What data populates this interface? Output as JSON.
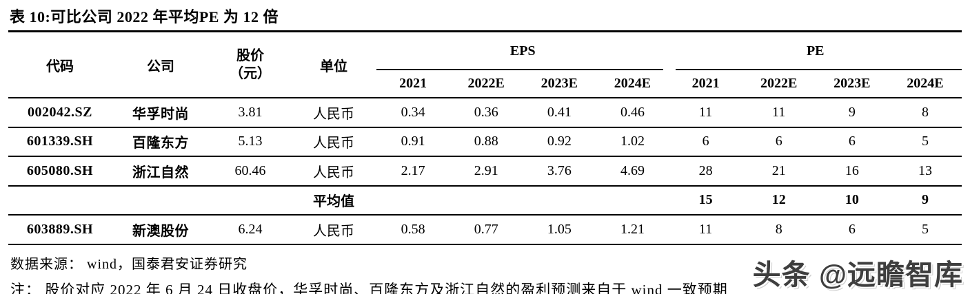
{
  "title": "表 10:可比公司 2022 年平均PE 为 12 倍",
  "table": {
    "columns": {
      "code": "代码",
      "company": "公司",
      "price_line1": "股价",
      "price_line2": "（元）",
      "unit": "单位",
      "eps_group": "EPS",
      "pe_group": "PE",
      "years": [
        "2021",
        "2022E",
        "2023E",
        "2024E"
      ]
    },
    "rows": [
      {
        "code": "002042.SZ",
        "company": "华孚时尚",
        "price": "3.81",
        "unit": "人民币",
        "eps": [
          "0.34",
          "0.36",
          "0.41",
          "0.46"
        ],
        "pe": [
          "11",
          "11",
          "9",
          "8"
        ]
      },
      {
        "code": "601339.SH",
        "company": "百隆东方",
        "price": "5.13",
        "unit": "人民币",
        "eps": [
          "0.91",
          "0.88",
          "0.92",
          "1.02"
        ],
        "pe": [
          "6",
          "6",
          "6",
          "5"
        ]
      },
      {
        "code": "605080.SH",
        "company": "浙江自然",
        "price": "60.46",
        "unit": "人民币",
        "eps": [
          "2.17",
          "2.91",
          "3.76",
          "4.69"
        ],
        "pe": [
          "28",
          "21",
          "16",
          "13"
        ]
      },
      {
        "code": "",
        "company": "",
        "price": "",
        "unit": "平均值",
        "eps": [
          "",
          "",
          "",
          ""
        ],
        "pe": [
          "15",
          "12",
          "10",
          "9"
        ]
      },
      {
        "code": "603889.SH",
        "company": "新澳股份",
        "price": "6.24",
        "unit": "人民币",
        "eps": [
          "0.58",
          "0.77",
          "1.05",
          "1.21"
        ],
        "pe": [
          "11",
          "8",
          "6",
          "5"
        ]
      }
    ]
  },
  "footer": {
    "source": "数据来源： wind，国泰君安证券研究",
    "note": "注： 股价对应 2022 年 6 月 24 日收盘价，华孚时尚、百隆东方及浙江自然的盈利预测来自于 wind 一致预期"
  },
  "watermark": "头条 @远瞻智库",
  "colors": {
    "text": "#000000",
    "rule": "#000000",
    "watermark": "#3e3e3e",
    "background": "#ffffff"
  }
}
